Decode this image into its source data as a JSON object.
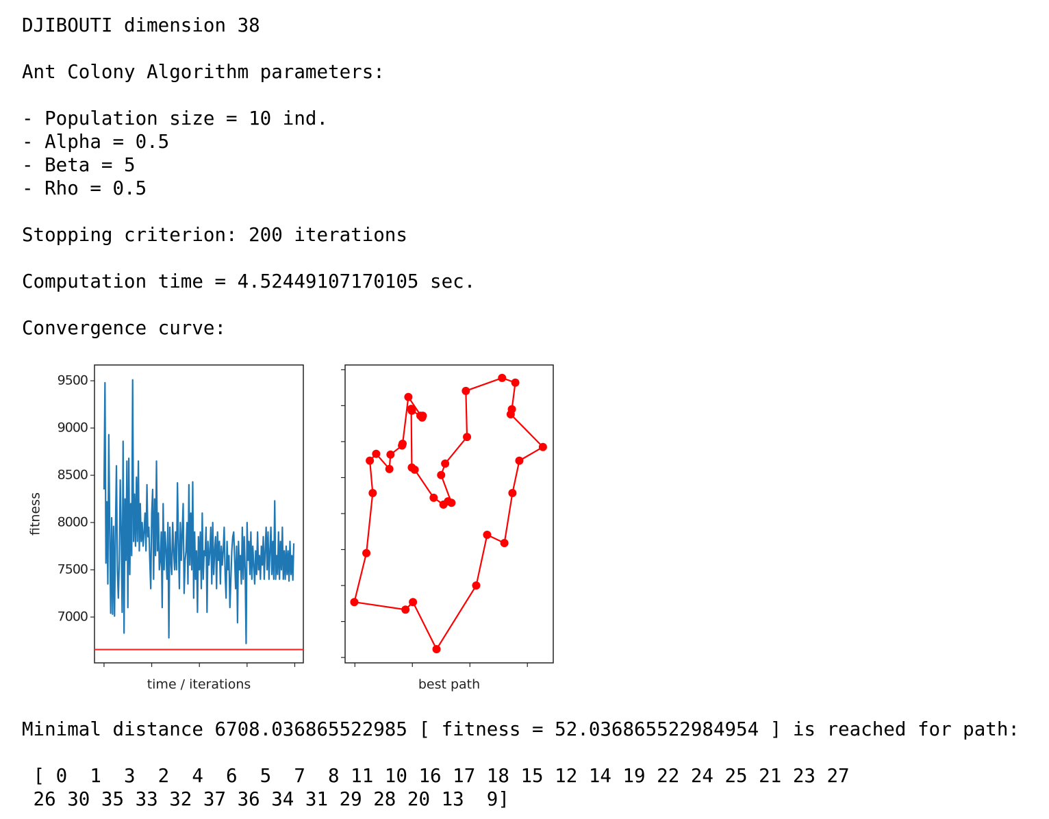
{
  "header_lines": [
    "DJIBOUTI dimension 38",
    "Ant Colony Algorithm parameters:",
    "- Population size = 10 ind.",
    "- Alpha = 0.5",
    "- Beta = 5",
    "- Rho = 0.5",
    "Stopping criterion: 200 iterations",
    "Computation time = 4.52449107170105 sec.",
    "Convergence curve:"
  ],
  "footer_lines": [
    "Minimal distance 6708.036865522985 [ fitness = 52.036865522984954 ] is reached for path:",
    " [ 0  1  3  2  4  6  5  7  8 11 10 16 17 18 15 12 14 19 22 24 25 21 23 27",
    " 26 30 35 33 32 37 36 34 31 29 28 20 13  9]"
  ],
  "chart_data": [
    {
      "type": "line",
      "x_label": "time / iterations",
      "y_label": "fitness",
      "color": "#1f77b4",
      "xlim": [
        -10,
        209
      ],
      "xticks": [
        0,
        50,
        100,
        150,
        200
      ],
      "xtick_labels_shown": false,
      "ylim": [
        6515,
        9667
      ],
      "yticks": [
        7000,
        7500,
        8000,
        8500,
        9000,
        9500
      ],
      "reference_line": {
        "value": 6656,
        "color": "#ff2020"
      },
      "values": [
        8350,
        9480,
        7570,
        8220,
        7350,
        8930,
        7900,
        7040,
        8050,
        7030,
        7960,
        7010,
        7900,
        8600,
        7500,
        7200,
        7600,
        8450,
        7900,
        7050,
        8860,
        6830,
        8250,
        7600,
        8650,
        7100,
        8680,
        7450,
        8200,
        7650,
        9510,
        7800,
        8300,
        7750,
        8480,
        7800,
        8650,
        7700,
        8200,
        7800,
        8000,
        7750,
        7900,
        8100,
        7700,
        8400,
        7850,
        7950,
        7600,
        7300,
        8100,
        8350,
        7400,
        8250,
        7650,
        8650,
        7700,
        8100,
        7500,
        7600,
        7900,
        7100,
        8200,
        7500,
        7900,
        7700,
        7400,
        8000,
        6780,
        7950,
        7600,
        7450,
        8000,
        7700,
        7500,
        7900,
        7500,
        8420,
        7800,
        7300,
        8000,
        7600,
        7900,
        8200,
        7250,
        7600,
        7700,
        8000,
        7350,
        8400,
        7550,
        8100,
        7500,
        8430,
        7200,
        7900,
        7400,
        7700,
        7050,
        7850,
        7500,
        7900,
        7300,
        8100,
        7400,
        7700,
        7650,
        7950,
        7050,
        7800,
        7550,
        7700,
        7950,
        7350,
        8000,
        7450,
        7700,
        7850,
        7300,
        7900,
        7600,
        7800,
        7350,
        7750,
        7550,
        7700,
        7950,
        7450,
        7200,
        7800,
        7500,
        7650,
        7100,
        7400,
        7700,
        7850,
        7900,
        7600,
        7300,
        7750,
        6940,
        7800,
        7500,
        7650,
        7350,
        7950,
        7400,
        7850,
        7500,
        6720,
        8000,
        7600,
        7800,
        7450,
        7900,
        7400,
        7750,
        7550,
        7350,
        7700,
        7450,
        7900,
        7500,
        7650,
        7400,
        7750,
        7550,
        7850,
        7400,
        7700,
        7950,
        7500,
        7900,
        7400,
        7700,
        7950,
        7450,
        7800,
        7400,
        8230,
        7400,
        7650,
        7450,
        7900,
        7400,
        7800,
        7500,
        7950,
        7400,
        7700,
        7400,
        7750,
        7450,
        7700,
        7380,
        7800,
        7450,
        7650,
        7390,
        7780
      ]
    },
    {
      "type": "scatter",
      "x_label": "best path",
      "color": "#ff0000",
      "connected": true,
      "closed": true,
      "xlim": [
        -0.17,
        3.45
      ],
      "xticks": [
        0,
        1,
        2,
        3
      ],
      "xtick_labels_shown": false,
      "ylim": [
        -0.15,
        8.13
      ],
      "yticks": [
        0,
        1,
        2,
        3,
        4,
        5,
        6,
        7,
        8
      ],
      "ytick_labels_shown": false,
      "x": [
        -0.01,
        0.88,
        1.01,
        1.42,
        2.11,
        2.3,
        2.6,
        2.74,
        2.86,
        3.27,
        2.71,
        2.73,
        2.79,
        2.56,
        1.93,
        1.95,
        1.57,
        1.5,
        1.68,
        1.62,
        1.54,
        1.37,
        1.04,
        0.99,
        0.98,
        0.99,
        1.14,
        1.18,
        1.17,
        0.93,
        0.83,
        0.82,
        0.62,
        0.6,
        0.37,
        0.26,
        0.31,
        0.2
      ],
      "values": [
        1.54,
        1.33,
        1.54,
        0.23,
        2.0,
        3.41,
        3.18,
        4.57,
        5.47,
        5.85,
        6.76,
        6.9,
        7.64,
        7.77,
        7.41,
        6.13,
        5.39,
        5.07,
        4.3,
        4.34,
        4.25,
        4.44,
        5.22,
        5.28,
        6.91,
        6.86,
        6.72,
        6.72,
        6.67,
        7.24,
        5.94,
        5.89,
        5.64,
        5.24,
        5.66,
        5.47,
        4.57,
        2.9
      ]
    }
  ]
}
